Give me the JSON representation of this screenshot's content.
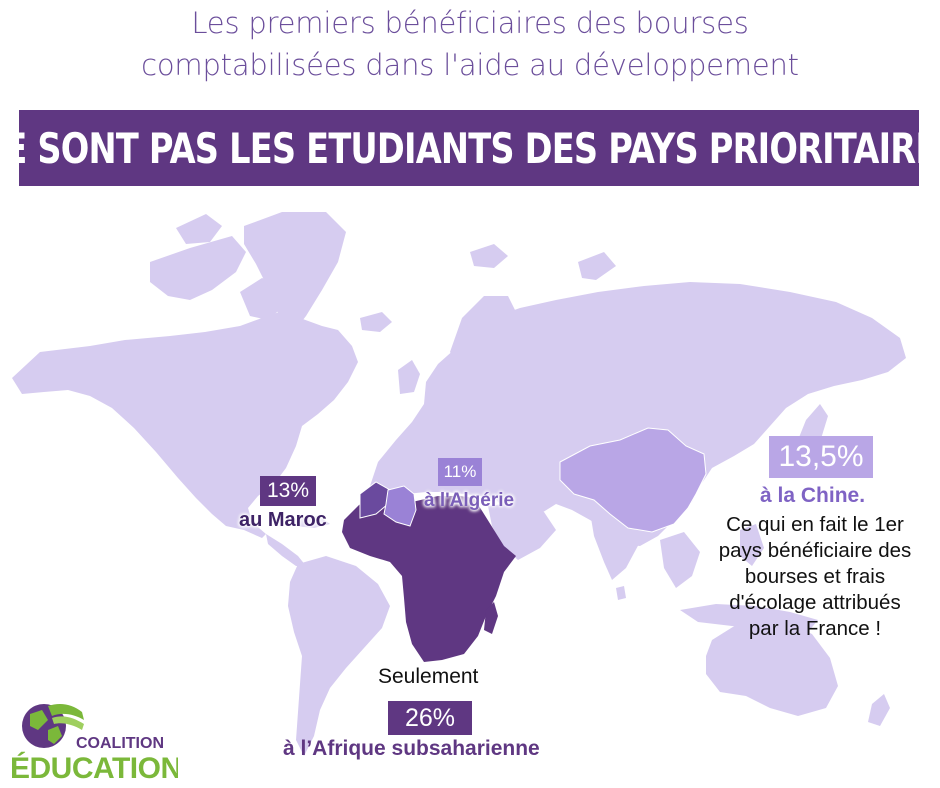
{
  "header": {
    "subtitle_line1": "Les premiers bénéficiaires des bourses",
    "subtitle_line2": "comptabilisées dans l'aide au développement",
    "headline": "NE SONT PAS LES ETUDIANTS DES PAYS PRIORITAIRES"
  },
  "callouts": {
    "maroc": {
      "value": "13%",
      "label": "au Maroc"
    },
    "algerie": {
      "value": "11%",
      "label": "à l'Algérie"
    },
    "chine": {
      "value": "13,5%",
      "label": "à la Chine.",
      "note": [
        "Ce qui en fait le 1er",
        "pays bénéficiaire des",
        "bourses et frais",
        "d'écolage attribués",
        "par la France !"
      ]
    },
    "afrique": {
      "prefix": "Seulement",
      "value": "26%",
      "label": "à l’Afrique subsaharienne"
    }
  },
  "logo": {
    "line1": "COALITION",
    "line2": "ÉDUCATION"
  },
  "colors": {
    "land": "#d6ccf0",
    "morocco": "#6a4a9e",
    "algeria": "#9a82d6",
    "china": "#b9a6e6",
    "africa": "#5f3782",
    "brand_purple": "#5f3782",
    "text_purple": "#6b4e9b",
    "green": "#7bb83a"
  }
}
